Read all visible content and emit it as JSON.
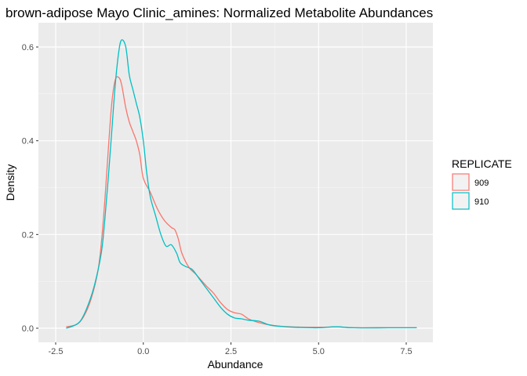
{
  "chart_data": {
    "type": "line",
    "title": "brown-adipose Mayo Clinic_amines: Normalized Metabolite Abundances",
    "xlabel": "Abundance",
    "ylabel": "Density",
    "xlim": [
      -2.5,
      8.0
    ],
    "ylim": [
      0.0,
      0.64
    ],
    "x_ticks": [
      -2.5,
      0.0,
      2.5,
      5.0,
      7.5
    ],
    "x_tick_labels": [
      "-2.5",
      "0.0",
      "2.5",
      "5.0",
      "7.5"
    ],
    "y_ticks": [
      0.0,
      0.2,
      0.4,
      0.6
    ],
    "y_tick_labels": [
      "0.0",
      "0.2",
      "0.4",
      "0.6"
    ],
    "grid": true,
    "legend": {
      "title": "REPLICATE",
      "position": "right",
      "entries": [
        "909",
        "910"
      ]
    },
    "series": [
      {
        "name": "909",
        "color": "#F8766D",
        "points": [
          [
            -2.2,
            0.003
          ],
          [
            -1.9,
            0.008
          ],
          [
            -1.7,
            0.025
          ],
          [
            -1.5,
            0.06
          ],
          [
            -1.3,
            0.12
          ],
          [
            -1.2,
            0.18
          ],
          [
            -1.1,
            0.27
          ],
          [
            -1.0,
            0.38
          ],
          [
            -0.9,
            0.48
          ],
          [
            -0.8,
            0.53
          ],
          [
            -0.7,
            0.535
          ],
          [
            -0.62,
            0.52
          ],
          [
            -0.5,
            0.47
          ],
          [
            -0.4,
            0.44
          ],
          [
            -0.3,
            0.42
          ],
          [
            -0.2,
            0.4
          ],
          [
            -0.1,
            0.37
          ],
          [
            0.0,
            0.32
          ],
          [
            0.2,
            0.29
          ],
          [
            0.4,
            0.255
          ],
          [
            0.6,
            0.23
          ],
          [
            0.8,
            0.215
          ],
          [
            0.9,
            0.21
          ],
          [
            1.0,
            0.19
          ],
          [
            1.1,
            0.16
          ],
          [
            1.3,
            0.13
          ],
          [
            1.5,
            0.115
          ],
          [
            1.8,
            0.09
          ],
          [
            2.0,
            0.075
          ],
          [
            2.2,
            0.055
          ],
          [
            2.4,
            0.04
          ],
          [
            2.6,
            0.033
          ],
          [
            2.8,
            0.03
          ],
          [
            3.0,
            0.02
          ],
          [
            3.3,
            0.012
          ],
          [
            3.7,
            0.006
          ],
          [
            4.2,
            0.003
          ],
          [
            5.0,
            0.002
          ],
          [
            5.5,
            0.003
          ],
          [
            6.0,
            0.001
          ],
          [
            7.0,
            0.001
          ],
          [
            7.8,
            0.001
          ]
        ]
      },
      {
        "name": "910",
        "color": "#00BFC4",
        "points": [
          [
            -2.2,
            0.0
          ],
          [
            -2.0,
            0.005
          ],
          [
            -1.8,
            0.015
          ],
          [
            -1.6,
            0.045
          ],
          [
            -1.4,
            0.09
          ],
          [
            -1.2,
            0.16
          ],
          [
            -1.1,
            0.23
          ],
          [
            -1.0,
            0.32
          ],
          [
            -0.9,
            0.42
          ],
          [
            -0.8,
            0.52
          ],
          [
            -0.7,
            0.59
          ],
          [
            -0.62,
            0.615
          ],
          [
            -0.5,
            0.6
          ],
          [
            -0.4,
            0.54
          ],
          [
            -0.3,
            0.51
          ],
          [
            -0.2,
            0.48
          ],
          [
            -0.1,
            0.45
          ],
          [
            0.0,
            0.4
          ],
          [
            0.1,
            0.33
          ],
          [
            0.2,
            0.28
          ],
          [
            0.35,
            0.24
          ],
          [
            0.5,
            0.2
          ],
          [
            0.65,
            0.175
          ],
          [
            0.8,
            0.178
          ],
          [
            0.95,
            0.16
          ],
          [
            1.05,
            0.14
          ],
          [
            1.2,
            0.132
          ],
          [
            1.4,
            0.125
          ],
          [
            1.6,
            0.105
          ],
          [
            1.8,
            0.085
          ],
          [
            2.0,
            0.065
          ],
          [
            2.2,
            0.045
          ],
          [
            2.4,
            0.03
          ],
          [
            2.6,
            0.022
          ],
          [
            2.8,
            0.02
          ],
          [
            3.0,
            0.017
          ],
          [
            3.3,
            0.015
          ],
          [
            3.6,
            0.007
          ],
          [
            3.9,
            0.004
          ],
          [
            4.3,
            0.002
          ],
          [
            5.0,
            0.001
          ],
          [
            5.5,
            0.003
          ],
          [
            6.0,
            0.001
          ],
          [
            7.0,
            0.001
          ],
          [
            7.8,
            0.001
          ]
        ]
      }
    ]
  }
}
